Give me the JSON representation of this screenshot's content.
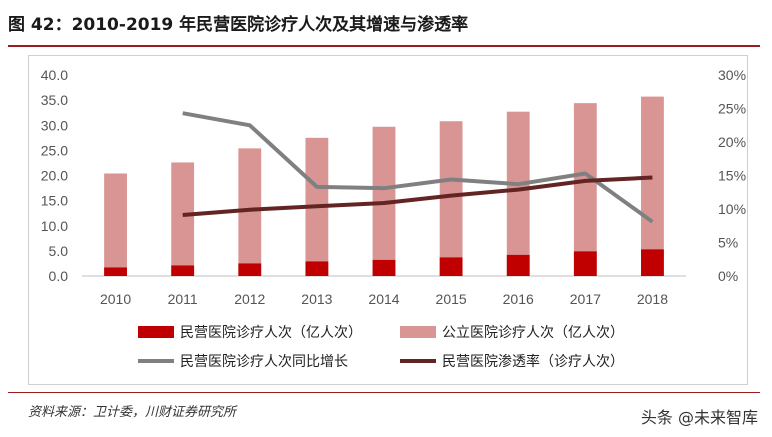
{
  "figure": {
    "title": "图 42：2010-2019 年民营医院诊疗人次及其增速与渗透率",
    "source": "资料来源：卫计委，川财证券研究所",
    "watermark": "头条 @未来智库"
  },
  "chart_data": {
    "type": "bar",
    "categories": [
      "2010",
      "2011",
      "2012",
      "2013",
      "2014",
      "2015",
      "2016",
      "2017",
      "2018"
    ],
    "series": [
      {
        "name": "民营医院诊疗人次（亿人次）",
        "type": "bar",
        "axis": "left",
        "color": "#c00000",
        "values": [
          1.7,
          2.1,
          2.5,
          2.9,
          3.2,
          3.7,
          4.2,
          4.9,
          5.3
        ]
      },
      {
        "name": "公立医院诊疗人次（亿人次）",
        "type": "bar",
        "axis": "left",
        "color": "#d99594",
        "values": [
          20.4,
          22.6,
          25.4,
          27.5,
          29.7,
          30.8,
          32.7,
          34.4,
          35.7
        ]
      },
      {
        "name": "民营医院诊疗人次同比增长",
        "type": "line",
        "axis": "right",
        "color": "#808080",
        "values": [
          null,
          24.3,
          22.5,
          13.3,
          13.1,
          14.4,
          13.7,
          15.3,
          8.1
        ]
      },
      {
        "name": "民营医院渗透率（诊疗人次）",
        "type": "line",
        "axis": "right",
        "color": "#632523",
        "values": [
          null,
          9.1,
          9.9,
          10.4,
          10.9,
          12.0,
          12.9,
          14.2,
          14.7
        ]
      }
    ],
    "y_left": {
      "min": 0,
      "max": 40,
      "step": 5,
      "tick_labels": [
        "0.0",
        "5.0",
        "10.0",
        "15.0",
        "20.0",
        "25.0",
        "30.0",
        "35.0",
        "40.0"
      ]
    },
    "y_right": {
      "min": 0,
      "max": 30,
      "step": 5,
      "tick_labels": [
        "0%",
        "5%",
        "10%",
        "15%",
        "20%",
        "25%",
        "30%"
      ]
    },
    "grid": false,
    "legend_placement": "bottom"
  }
}
